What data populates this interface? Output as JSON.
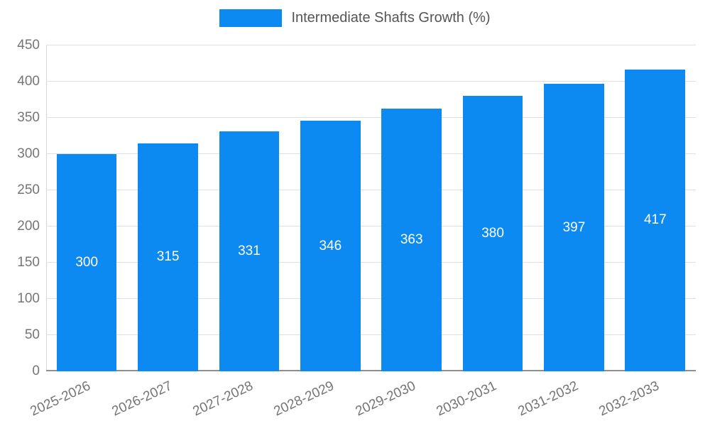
{
  "chart_data": {
    "type": "bar",
    "title": "",
    "legend_label": "Intermediate Shafts Growth (%)",
    "legend_position": "top",
    "categories": [
      "2025-2026",
      "2026-2027",
      "2027-2028",
      "2028-2029",
      "2029-2030",
      "2030-2031",
      "2031-2032",
      "2032-2033"
    ],
    "values": [
      300,
      315,
      331,
      346,
      363,
      380,
      397,
      417
    ],
    "xlabel": "",
    "ylabel": "",
    "ylim": [
      0,
      450
    ],
    "ytick_step": 50,
    "grid": true,
    "x_label_rotation_deg": -25,
    "colors": {
      "bar": "#0d8af2",
      "axis_text": "#757575",
      "legend_text": "#555555",
      "grid_line": "#e0e0e0",
      "baseline": "#8f8f8f",
      "data_label": "#ffffff",
      "background": "#ffffff"
    }
  }
}
